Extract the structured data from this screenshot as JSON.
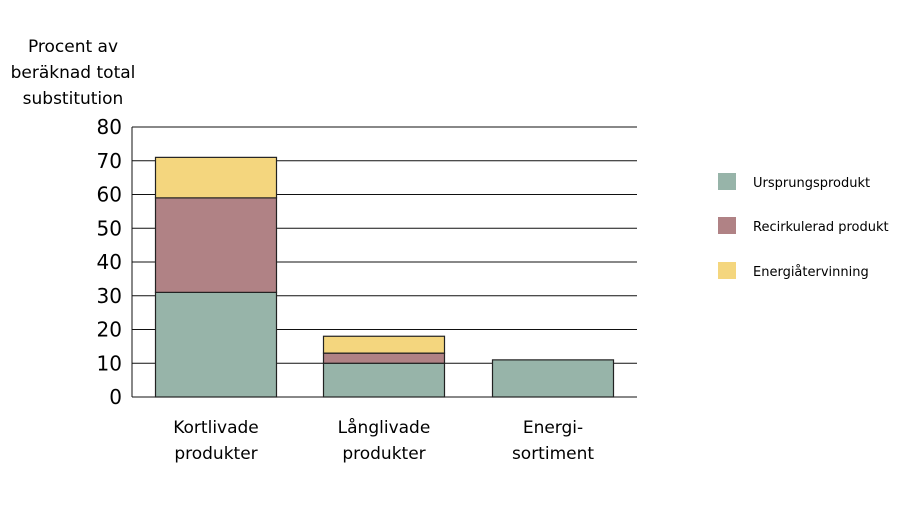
{
  "chart_data": {
    "type": "bar",
    "stacked": true,
    "ylabel_lines": [
      "Procent av",
      "beräknad total",
      "substitution"
    ],
    "ylim": [
      0,
      80
    ],
    "yticks": [
      0,
      10,
      20,
      30,
      40,
      50,
      60,
      70,
      80
    ],
    "grid": true,
    "legend_position": "right",
    "categories": [
      {
        "lines": [
          "Kortlivade",
          "produkter"
        ]
      },
      {
        "lines": [
          "Långlivade",
          "produkter"
        ]
      },
      {
        "lines": [
          "Energi-",
          "sortiment"
        ]
      }
    ],
    "series": [
      {
        "name": "Ursprungsprodukt",
        "color": "#97b4a9",
        "values": [
          31,
          10,
          11
        ]
      },
      {
        "name": "Recirkulerad produkt",
        "color": "#b08285",
        "values": [
          28,
          3,
          0
        ]
      },
      {
        "name": "Energiåtervinning",
        "color": "#f4d67e",
        "values": [
          12,
          5,
          0
        ]
      }
    ]
  }
}
